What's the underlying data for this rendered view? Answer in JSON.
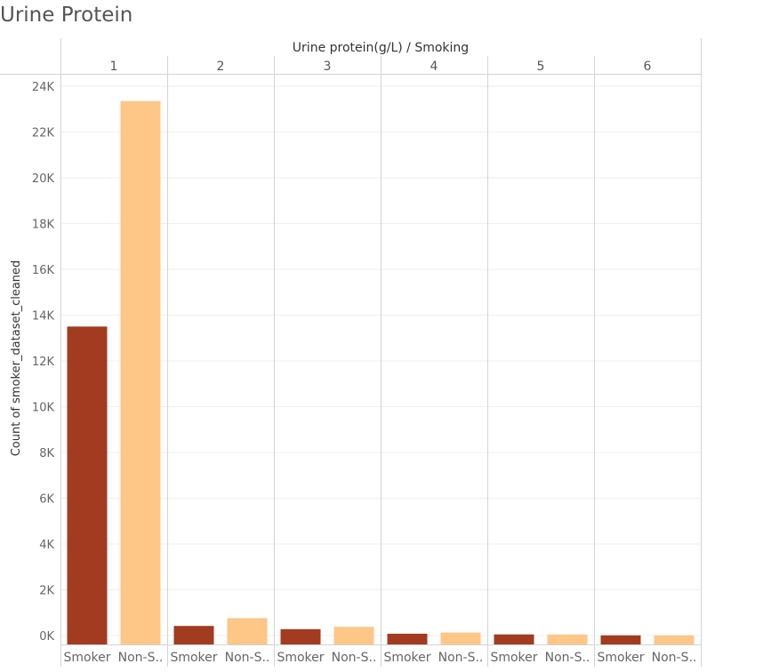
{
  "title": "Urine Protein",
  "chart_data": {
    "type": "bar",
    "column_header": "Urine protein(g/L)  /  Smoking",
    "ylabel": "Count of smoker_dataset_cleaned",
    "groups": [
      "1",
      "2",
      "3",
      "4",
      "5",
      "6"
    ],
    "bar_labels": [
      "Smoker",
      "Non-S.."
    ],
    "series": [
      {
        "name": "Smoker",
        "color": "#a23b20",
        "values": [
          13500,
          420,
          280,
          80,
          50,
          10
        ]
      },
      {
        "name": "Non-Smoker",
        "color": "#fec687",
        "values": [
          23350,
          760,
          380,
          130,
          45,
          8
        ]
      }
    ],
    "ylim": [
      0,
      24000
    ],
    "yticks": [
      0,
      2000,
      4000,
      6000,
      8000,
      10000,
      12000,
      14000,
      16000,
      18000,
      20000,
      22000,
      24000
    ],
    "ytick_labels": [
      "0K",
      "2K",
      "4K",
      "6K",
      "8K",
      "10K",
      "12K",
      "14K",
      "16K",
      "18K",
      "20K",
      "22K",
      "24K"
    ],
    "grid": true
  }
}
